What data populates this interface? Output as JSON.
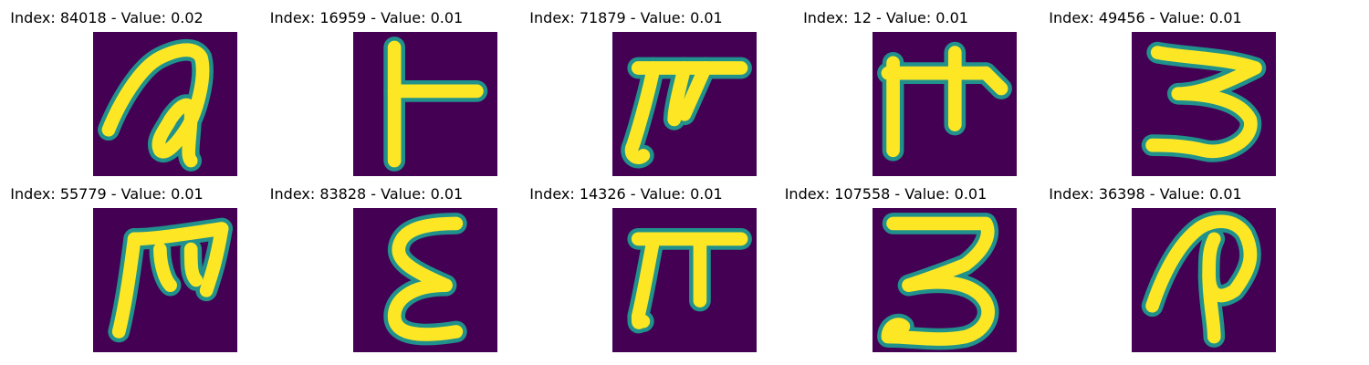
{
  "figure": {
    "rows": 2,
    "columns": 5,
    "colormap": "viridis",
    "background_color": "#440154",
    "stroke_color": "#fde725",
    "edge_color": "#21918c"
  },
  "panels": [
    {
      "title": "Index: 84018 - Value: 0.02",
      "glyph": "a-loop"
    },
    {
      "title": "Index: 16959 - Value: 0.01",
      "glyph": "tee-right"
    },
    {
      "title": "Index: 71879 - Value: 0.01",
      "glyph": "pi-curl"
    },
    {
      "title": "Index: 12 - Value: 0.01",
      "glyph": "pi-cross"
    },
    {
      "title": "Index: 49456 - Value: 0.01",
      "glyph": "three"
    },
    {
      "title": "Index: 55779 - Value: 0.01",
      "glyph": "m-leaning"
    },
    {
      "title": "Index: 83828 - Value: 0.01",
      "glyph": "epsilon"
    },
    {
      "title": "Index: 14326 - Value: 0.01",
      "glyph": "pi"
    },
    {
      "title": "Index: 107558 - Value: 0.01",
      "glyph": "three-flat"
    },
    {
      "title": "Index: 36398 - Value: 0.01",
      "glyph": "hook-p"
    }
  ]
}
